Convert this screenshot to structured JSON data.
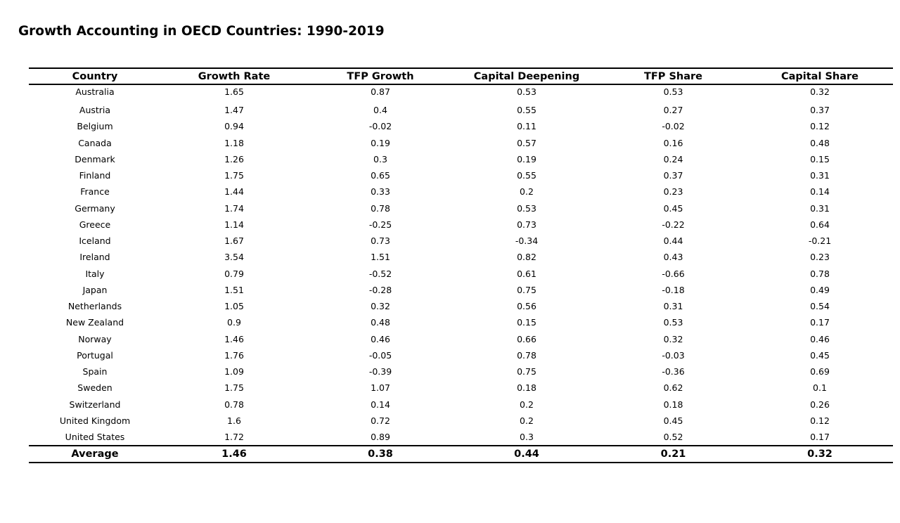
{
  "title": "Growth Accounting in OECD Countries: 1990-2019",
  "chart_data": {
    "type": "table",
    "title": "Growth Accounting in OECD Countries: 1990-2019",
    "columns": [
      "Country",
      "Growth Rate",
      "TFP Growth",
      "Capital Deepening",
      "TFP Share",
      "Capital Share"
    ],
    "rows": [
      [
        "Australia",
        "1.65",
        "0.87",
        "0.53",
        "0.53",
        "0.32"
      ],
      [
        "Austria",
        "1.47",
        "0.4",
        "0.55",
        "0.27",
        "0.37"
      ],
      [
        "Belgium",
        "0.94",
        "-0.02",
        "0.11",
        "-0.02",
        "0.12"
      ],
      [
        "Canada",
        "1.18",
        "0.19",
        "0.57",
        "0.16",
        "0.48"
      ],
      [
        "Denmark",
        "1.26",
        "0.3",
        "0.19",
        "0.24",
        "0.15"
      ],
      [
        "Finland",
        "1.75",
        "0.65",
        "0.55",
        "0.37",
        "0.31"
      ],
      [
        "France",
        "1.44",
        "0.33",
        "0.2",
        "0.23",
        "0.14"
      ],
      [
        "Germany",
        "1.74",
        "0.78",
        "0.53",
        "0.45",
        "0.31"
      ],
      [
        "Greece",
        "1.14",
        "-0.25",
        "0.73",
        "-0.22",
        "0.64"
      ],
      [
        "Iceland",
        "1.67",
        "0.73",
        "-0.34",
        "0.44",
        "-0.21"
      ],
      [
        "Ireland",
        "3.54",
        "1.51",
        "0.82",
        "0.43",
        "0.23"
      ],
      [
        "Italy",
        "0.79",
        "-0.52",
        "0.61",
        "-0.66",
        "0.78"
      ],
      [
        "Japan",
        "1.51",
        "-0.28",
        "0.75",
        "-0.18",
        "0.49"
      ],
      [
        "Netherlands",
        "1.05",
        "0.32",
        "0.56",
        "0.31",
        "0.54"
      ],
      [
        "New Zealand",
        "0.9",
        "0.48",
        "0.15",
        "0.53",
        "0.17"
      ],
      [
        "Norway",
        "1.46",
        "0.46",
        "0.66",
        "0.32",
        "0.46"
      ],
      [
        "Portugal",
        "1.76",
        "-0.05",
        "0.78",
        "-0.03",
        "0.45"
      ],
      [
        "Spain",
        "1.09",
        "-0.39",
        "0.75",
        "-0.36",
        "0.69"
      ],
      [
        "Sweden",
        "1.75",
        "1.07",
        "0.18",
        "0.62",
        "0.1"
      ],
      [
        "Switzerland",
        "0.78",
        "0.14",
        "0.2",
        "0.18",
        "0.26"
      ],
      [
        "United Kingdom",
        "1.6",
        "0.72",
        "0.2",
        "0.45",
        "0.12"
      ],
      [
        "United States",
        "1.72",
        "0.89",
        "0.3",
        "0.52",
        "0.17"
      ]
    ],
    "footer": [
      "Average",
      "1.46",
      "0.38",
      "0.44",
      "0.21",
      "0.32"
    ]
  }
}
